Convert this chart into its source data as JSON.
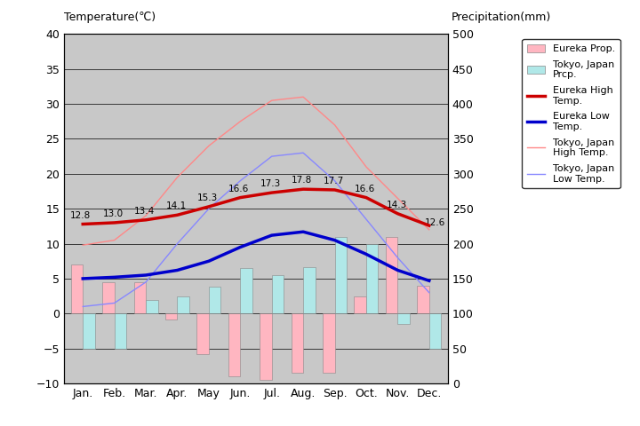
{
  "months": [
    "Jan.",
    "Feb.",
    "Mar.",
    "Apr.",
    "May",
    "Jun.",
    "Jul.",
    "Aug.",
    "Sep.",
    "Oct.",
    "Nov.",
    "Dec."
  ],
  "eureka_high": [
    12.8,
    13.0,
    13.4,
    14.1,
    15.3,
    16.6,
    17.3,
    17.8,
    17.7,
    16.6,
    14.3,
    12.6
  ],
  "eureka_low": [
    5.0,
    5.2,
    5.5,
    6.2,
    7.5,
    9.5,
    11.2,
    11.7,
    10.5,
    8.5,
    6.2,
    4.7
  ],
  "tokyo_high": [
    9.8,
    10.5,
    14.0,
    19.5,
    24.0,
    27.5,
    30.5,
    31.0,
    27.0,
    21.0,
    16.5,
    12.0
  ],
  "tokyo_low": [
    1.0,
    1.5,
    4.5,
    10.0,
    15.0,
    19.0,
    22.5,
    23.0,
    19.0,
    13.5,
    8.0,
    3.0
  ],
  "eureka_precip_bar": [
    7.0,
    4.5,
    4.5,
    -0.8,
    -5.8,
    -9.0,
    -9.5,
    -8.5,
    -8.5,
    2.5,
    11.0,
    4.0
  ],
  "tokyo_precip_bar": [
    -5.0,
    -5.0,
    2.0,
    2.5,
    3.8,
    6.5,
    5.5,
    6.7,
    11.0,
    10.0,
    -1.5,
    -5.0
  ],
  "plot_bg": "#c8c8c8",
  "eureka_high_color": "#cc0000",
  "eureka_low_color": "#0000cc",
  "tokyo_high_color": "#ff8888",
  "tokyo_low_color": "#8888ff",
  "eureka_bar_color": "#ffb6c1",
  "tokyo_bar_color": "#b0e8e8",
  "ylim_left": [
    -10,
    40
  ],
  "ylim_right": [
    0,
    500
  ],
  "yticks_left": [
    -10,
    -5,
    0,
    5,
    10,
    15,
    20,
    25,
    30,
    35,
    40
  ],
  "yticks_right": [
    0,
    50,
    100,
    150,
    200,
    250,
    300,
    350,
    400,
    450,
    500
  ],
  "title_left": "Temperature(℃)",
  "title_right": "Precipitation(mm)",
  "legend_labels": [
    "Eureka Prop.",
    "Tokyo, Japan\nPrcp.",
    "Eureka High\nTemp.",
    "Eureka Low\nTemp.",
    "Tokyo, Japan\nHigh Temp.",
    "Tokyo, Japan\nLow Temp."
  ]
}
